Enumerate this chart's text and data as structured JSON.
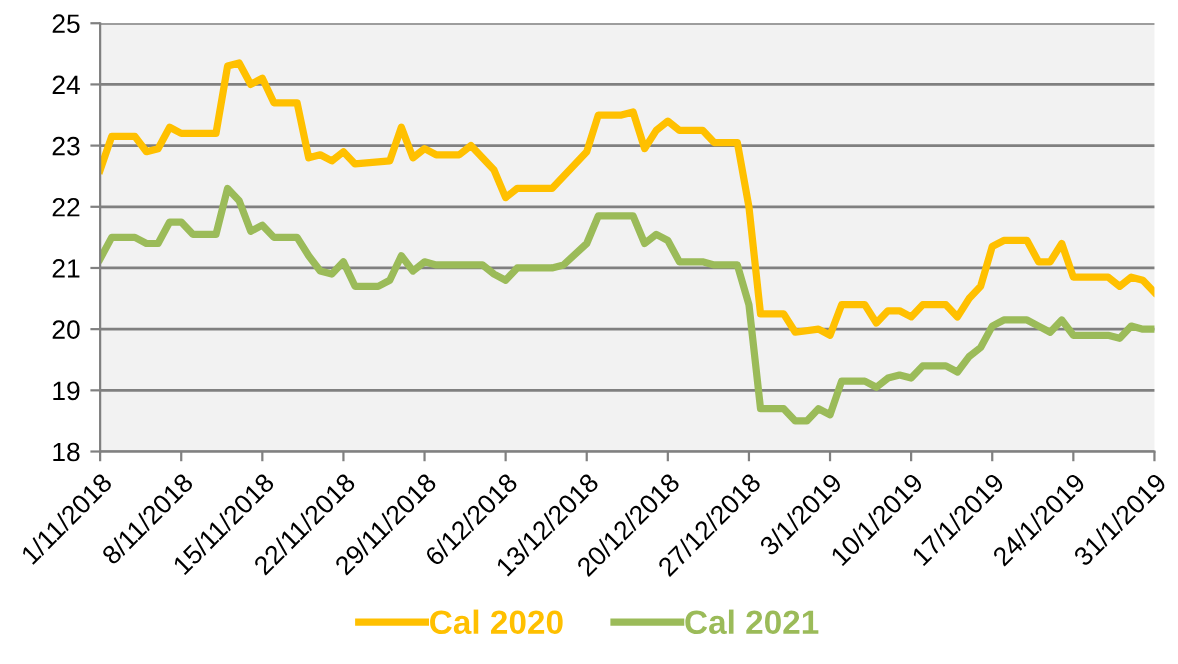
{
  "chart_data": {
    "type": "line",
    "legend": "bottom",
    "grid": "y",
    "marker": "none",
    "line_style": "solid",
    "xlim": [
      "2018-11-01",
      "2019-01-31"
    ],
    "ylim": [
      18,
      25
    ],
    "yticks": [
      18,
      19,
      20,
      21,
      22,
      23,
      24,
      25
    ],
    "xticks": [
      {
        "value": "2018-11-01",
        "label": "1/11/2018"
      },
      {
        "value": "2018-11-08",
        "label": "8/11/2018"
      },
      {
        "value": "2018-11-15",
        "label": "15/11/2018"
      },
      {
        "value": "2018-11-22",
        "label": "22/11/2018"
      },
      {
        "value": "2018-11-29",
        "label": "29/11/2018"
      },
      {
        "value": "2018-12-06",
        "label": "6/12/2018"
      },
      {
        "value": "2018-12-13",
        "label": "13/12/2018"
      },
      {
        "value": "2018-12-20",
        "label": "20/12/2018"
      },
      {
        "value": "2018-12-27",
        "label": "27/12/2018"
      },
      {
        "value": "2019-01-03",
        "label": "3/1/2019"
      },
      {
        "value": "2019-01-10",
        "label": "10/1/2019"
      },
      {
        "value": "2019-01-17",
        "label": "17/1/2019"
      },
      {
        "value": "2019-01-24",
        "label": "24/1/2019"
      },
      {
        "value": "2019-01-31",
        "label": "31/1/2019"
      }
    ],
    "series": [
      {
        "name": "Cal 2020",
        "color": "#ffc000",
        "x": [
          "2018-11-01",
          "2018-11-02",
          "2018-11-04",
          "2018-11-05",
          "2018-11-06",
          "2018-11-07",
          "2018-11-08",
          "2018-11-11",
          "2018-11-12",
          "2018-11-13",
          "2018-11-14",
          "2018-11-15",
          "2018-11-16",
          "2018-11-18",
          "2018-11-19",
          "2018-11-20",
          "2018-11-21",
          "2018-11-22",
          "2018-11-23",
          "2018-11-26",
          "2018-11-27",
          "2018-11-28",
          "2018-11-29",
          "2018-11-30",
          "2018-12-02",
          "2018-12-03",
          "2018-12-05",
          "2018-12-06",
          "2018-12-07",
          "2018-12-10",
          "2018-12-11",
          "2018-12-13",
          "2018-12-14",
          "2018-12-16",
          "2018-12-17",
          "2018-12-18",
          "2018-12-19",
          "2018-12-20",
          "2018-12-21",
          "2018-12-23",
          "2018-12-24",
          "2018-12-26",
          "2018-12-27",
          "2018-12-28",
          "2018-12-30",
          "2018-12-31",
          "2019-01-02",
          "2019-01-03",
          "2019-01-04",
          "2019-01-06",
          "2019-01-07",
          "2019-01-08",
          "2019-01-09",
          "2019-01-10",
          "2019-01-11",
          "2019-01-13",
          "2019-01-14",
          "2019-01-15",
          "2019-01-16",
          "2019-01-17",
          "2019-01-18",
          "2019-01-20",
          "2019-01-21",
          "2019-01-22",
          "2019-01-23",
          "2019-01-24",
          "2019-01-27",
          "2019-01-28",
          "2019-01-29",
          "2019-01-30",
          "2019-01-31"
        ],
        "values": [
          22.6,
          23.15,
          23.15,
          22.9,
          22.95,
          23.3,
          23.2,
          23.2,
          24.3,
          24.35,
          24.0,
          24.1,
          23.7,
          23.7,
          22.8,
          22.85,
          22.75,
          22.9,
          22.7,
          22.75,
          23.3,
          22.8,
          22.95,
          22.85,
          22.85,
          23.0,
          22.6,
          22.15,
          22.3,
          22.3,
          22.5,
          22.9,
          23.5,
          23.5,
          23.55,
          22.95,
          23.25,
          23.4,
          23.25,
          23.25,
          23.05,
          23.05,
          22.0,
          20.25,
          20.25,
          19.95,
          20.0,
          19.9,
          20.4,
          20.4,
          20.1,
          20.3,
          20.3,
          20.2,
          20.4,
          20.4,
          20.2,
          20.5,
          20.7,
          21.35,
          21.45,
          21.45,
          21.1,
          21.1,
          21.4,
          20.85,
          20.85,
          20.7,
          20.85,
          20.8,
          20.6
        ]
      },
      {
        "name": "Cal 2021",
        "color": "#9bbb59",
        "x": [
          "2018-11-01",
          "2018-11-02",
          "2018-11-04",
          "2018-11-05",
          "2018-11-06",
          "2018-11-07",
          "2018-11-08",
          "2018-11-09",
          "2018-11-11",
          "2018-11-12",
          "2018-11-13",
          "2018-11-14",
          "2018-11-15",
          "2018-11-16",
          "2018-11-18",
          "2018-11-19",
          "2018-11-20",
          "2018-11-21",
          "2018-11-22",
          "2018-11-23",
          "2018-11-25",
          "2018-11-26",
          "2018-11-27",
          "2018-11-28",
          "2018-11-29",
          "2018-11-30",
          "2018-12-03",
          "2018-12-04",
          "2018-12-05",
          "2018-12-06",
          "2018-12-07",
          "2018-12-10",
          "2018-12-11",
          "2018-12-13",
          "2018-12-14",
          "2018-12-17",
          "2018-12-18",
          "2018-12-19",
          "2018-12-20",
          "2018-12-21",
          "2018-12-23",
          "2018-12-24",
          "2018-12-26",
          "2018-12-27",
          "2018-12-28",
          "2018-12-30",
          "2018-12-31",
          "2019-01-01",
          "2019-01-02",
          "2019-01-03",
          "2019-01-04",
          "2019-01-06",
          "2019-01-07",
          "2019-01-08",
          "2019-01-09",
          "2019-01-10",
          "2019-01-11",
          "2019-01-13",
          "2019-01-14",
          "2019-01-15",
          "2019-01-16",
          "2019-01-17",
          "2019-01-18",
          "2019-01-20",
          "2019-01-21",
          "2019-01-22",
          "2019-01-23",
          "2019-01-24",
          "2019-01-27",
          "2019-01-28",
          "2019-01-29",
          "2019-01-30",
          "2019-01-31"
        ],
        "values": [
          21.15,
          21.5,
          21.5,
          21.4,
          21.4,
          21.75,
          21.75,
          21.55,
          21.55,
          22.3,
          22.1,
          21.6,
          21.7,
          21.5,
          21.5,
          21.2,
          20.95,
          20.9,
          21.1,
          20.7,
          20.7,
          20.8,
          21.2,
          20.95,
          21.1,
          21.05,
          21.05,
          21.05,
          20.9,
          20.8,
          21.0,
          21.0,
          21.05,
          21.4,
          21.85,
          21.85,
          21.4,
          21.55,
          21.45,
          21.1,
          21.1,
          21.05,
          21.05,
          20.4,
          18.7,
          18.7,
          18.5,
          18.5,
          18.7,
          18.6,
          19.15,
          19.15,
          19.05,
          19.2,
          19.25,
          19.2,
          19.4,
          19.4,
          19.3,
          19.55,
          19.7,
          20.05,
          20.15,
          20.15,
          20.05,
          19.95,
          20.15,
          19.9,
          19.9,
          19.85,
          20.05,
          20.0,
          20.0
        ]
      }
    ]
  }
}
